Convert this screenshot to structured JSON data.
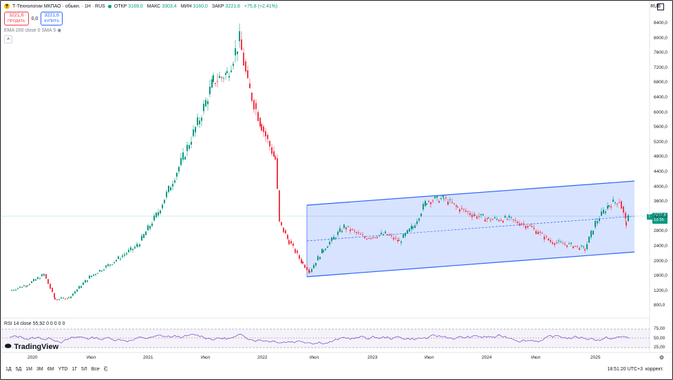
{
  "header": {
    "title": "Т-Технологии МКПАО · обыкн. · 1Н · RUS",
    "ohlc": [
      {
        "key": "ОТКР",
        "value": "3169,0"
      },
      {
        "key": "МАКС",
        "value": "3303,4"
      },
      {
        "key": "МИН",
        "value": "3160,0"
      },
      {
        "key": "ЗАКР",
        "value": "3221,6"
      },
      {
        "key": "",
        "value": "+75,8 (+2,41%)"
      }
    ],
    "currency": "RUB"
  },
  "trade": {
    "sell_price": "3221,6",
    "sell_label": "ПРОДАТЬ",
    "spread": "0,0",
    "buy_price": "3221,6",
    "buy_label": "КУПИТЬ"
  },
  "indicator": "EMA 200 close 0 SMA 5",
  "rsi_legend": "RSI 14 close  55,92  0  0  0  0    0",
  "price_axis": [
    "8400,0",
    "8000,0",
    "7600,0",
    "7200,0",
    "6800,0",
    "6400,0",
    "6000,0",
    "5600,0",
    "5200,0",
    "4800,0",
    "4400,0",
    "4000,0",
    "3600,0",
    "3200,0",
    "2800,0",
    "2400,0",
    "2000,0",
    "1600,0",
    "1200,0",
    "800,0"
  ],
  "last_price": "3221,6",
  "last_time": "1d 5h",
  "rsi_axis": [
    "75,00",
    "50,00",
    "25,00"
  ],
  "time_axis": [
    "2020",
    "Июл",
    "2021",
    "Июл",
    "2022",
    "Июл",
    "2023",
    "Июл",
    "2024",
    "Июл",
    "2025"
  ],
  "bottom": {
    "ranges": [
      "1Д",
      "5Д",
      "1М",
      "3М",
      "6М",
      "YTD",
      "1Г",
      "5Л",
      "Все"
    ],
    "time": "18:51:20 UTC+3",
    "adjust": "коррект."
  },
  "brand": "TradingView",
  "colors": {
    "up": "#089981",
    "down": "#f23645",
    "channel": "#2962ff",
    "rsi": "#7e57c2"
  }
}
